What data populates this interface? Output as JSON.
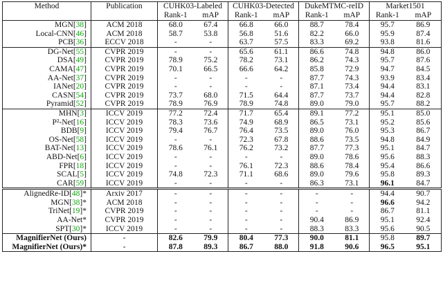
{
  "header": {
    "method": "Method",
    "publication": "Publication",
    "datasets": [
      "CUHK03-Labeled",
      "CUHK03-Detected",
      "DukeMTMC-reID",
      "Market1501"
    ],
    "metric_rank": "Rank-1",
    "metric_map": "mAP"
  },
  "rows": [
    {
      "method": "MGN",
      "cite": "38",
      "suffix": "",
      "pub": "ACM 2018",
      "v": [
        "68.0",
        "67.4",
        "66.8",
        "66.0",
        "88.7",
        "78.4",
        "95.7",
        "86.9"
      ],
      "bold": [],
      "sep": "top"
    },
    {
      "method": "Local-CNN",
      "cite": "46",
      "suffix": "",
      "pub": "ACM 2018",
      "v": [
        "58.7",
        "53.8",
        "56.8",
        "51.6",
        "82.2",
        "66.0",
        "95.9",
        "87.4"
      ],
      "bold": []
    },
    {
      "method": "PCB",
      "cite": "36",
      "suffix": "",
      "pub": "ECCV 2018",
      "v": [
        "-",
        "-",
        "63.7",
        "57.5",
        "83.3",
        "69.2",
        "93.8",
        "81.6"
      ],
      "bold": []
    },
    {
      "method": "DG-Net",
      "cite": "55",
      "suffix": "",
      "pub": "CVPR 2019",
      "v": [
        "-",
        "-",
        "65.6",
        "61.1",
        "86.6",
        "74.8",
        "94.8",
        "86.0"
      ],
      "bold": [],
      "sep": "line"
    },
    {
      "method": "DSA",
      "cite": "49",
      "suffix": "",
      "pub": "CVPR 2019",
      "v": [
        "78.9",
        "75.2",
        "78.2",
        "73.1",
        "86.2",
        "74.3",
        "95.7",
        "87.6"
      ],
      "bold": []
    },
    {
      "method": "CAMA",
      "cite": "47",
      "suffix": "",
      "pub": "CVPR 2019",
      "v": [
        "70.1",
        "66.5",
        "66.6",
        "64.2",
        "85.8",
        "72.9",
        "94.7",
        "84.5"
      ],
      "bold": []
    },
    {
      "method": "AA-Net",
      "cite": "37",
      "suffix": "",
      "pub": "CVPR 2019",
      "v": [
        "-",
        "-",
        "-",
        "-",
        "87.7",
        "74.3",
        "93.9",
        "83.4"
      ],
      "bold": []
    },
    {
      "method": "IANet",
      "cite": "20",
      "suffix": "",
      "pub": "CVPR 2019",
      "v": [
        "-",
        "-",
        "-",
        "-",
        "87.1",
        "73.4",
        "94.4",
        "83.1"
      ],
      "bold": []
    },
    {
      "method": "CASN",
      "cite": "54",
      "suffix": "",
      "pub": "CVPR 2019",
      "v": [
        "73.7",
        "68.0",
        "71.5",
        "64.4",
        "87.7",
        "73.7",
        "94.4",
        "82.8"
      ],
      "bold": []
    },
    {
      "method": "Pyramid",
      "cite": "52",
      "suffix": "",
      "pub": "CVPR 2019",
      "v": [
        "78.9",
        "76.9",
        "78.9",
        "74.8",
        "89.0",
        "79.0",
        "95.7",
        "88.2"
      ],
      "bold": []
    },
    {
      "method": "MHN",
      "cite": "3",
      "suffix": "",
      "pub": "ICCV 2019",
      "v": [
        "77.2",
        "72.4",
        "71.7",
        "65.4",
        "89.1",
        "77.2",
        "95.1",
        "85.0"
      ],
      "bold": [],
      "sep": "line"
    },
    {
      "method": "P²-Net",
      "cite": "16",
      "suffix": "",
      "pub": "ICCV 2019",
      "v": [
        "78.3",
        "73.6",
        "74.9",
        "68.9",
        "86.5",
        "73.1",
        "95.2",
        "85.6"
      ],
      "bold": []
    },
    {
      "method": "BDB",
      "cite": "9",
      "suffix": "",
      "pub": "ICCV 2019",
      "v": [
        "79.4",
        "76.7",
        "76.4",
        "73.5",
        "89.0",
        "76.0",
        "95.3",
        "86.7"
      ],
      "bold": []
    },
    {
      "method": "OS-Net",
      "cite": "58",
      "suffix": "",
      "pub": "ICCV 2019",
      "v": [
        "-",
        "-",
        "72.3",
        "67.8",
        "88.6",
        "73.5",
        "94.8",
        "84.9"
      ],
      "bold": []
    },
    {
      "method": "BAT-Net",
      "cite": "13",
      "suffix": "",
      "pub": "ICCV 2019",
      "v": [
        "78.6",
        "76.1",
        "76.2",
        "73.2",
        "87.7",
        "77.3",
        "95.1",
        "84.7"
      ],
      "bold": []
    },
    {
      "method": "ABD-Net",
      "cite": "6",
      "suffix": "",
      "pub": "ICCV 2019",
      "v": [
        "-",
        "-",
        "-",
        "-",
        "89.0",
        "78.6",
        "95.6",
        "88.3"
      ],
      "bold": []
    },
    {
      "method": "FPR",
      "cite": "18",
      "suffix": "",
      "pub": "ICCV 2019",
      "v": [
        "-",
        "-",
        "76.1",
        "72.3",
        "88.6",
        "78.4",
        "95.4",
        "86.6"
      ],
      "bold": []
    },
    {
      "method": "SCAL",
      "cite": "5",
      "suffix": "",
      "pub": "ICCV 2019",
      "v": [
        "74.8",
        "72.3",
        "71.1",
        "68.6",
        "89.0",
        "79.6",
        "95.8",
        "89.3"
      ],
      "bold": []
    },
    {
      "method": "CAR",
      "cite": "59",
      "suffix": "",
      "pub": "ICCV 2019",
      "v": [
        "-",
        "-",
        "-",
        "-",
        "86.3",
        "73.1",
        "96.1",
        "84.7"
      ],
      "bold": [
        6
      ]
    },
    {
      "method": "AlignedRe-ID",
      "cite": "48",
      "suffix": "*",
      "pub": "Arxiv 2017",
      "v": [
        "-",
        "-",
        "-",
        "-",
        "-",
        "-",
        "94.4",
        "90.7"
      ],
      "bold": [],
      "sep": "double"
    },
    {
      "method": "MGN",
      "cite": "38",
      "suffix": "*",
      "pub": "ACM 2018",
      "v": [
        "-",
        "-",
        "-",
        "-",
        "-",
        "-",
        "96.6",
        "94.2"
      ],
      "bold": [
        6
      ]
    },
    {
      "method": "TriNet",
      "cite": "19",
      "suffix": "*",
      "pub": "CVPR 2019",
      "v": [
        "-",
        "-",
        "-",
        "-",
        "-",
        "-",
        "86.7",
        "81.1"
      ],
      "bold": []
    },
    {
      "method": "AA-Net",
      "cite": "",
      "suffix": "*",
      "pub": "CVPR 2019",
      "v": [
        "-",
        "-",
        "-",
        "-",
        "90.4",
        "86.9",
        "95.1",
        "92.4"
      ],
      "bold": []
    },
    {
      "method": "SPT",
      "cite": "30",
      "suffix": "*",
      "pub": "ICCV 2019",
      "v": [
        "-",
        "-",
        "-",
        "-",
        "88.3",
        "83.3",
        "95.6",
        "90.5"
      ],
      "bold": []
    },
    {
      "method": "MagnifierNet (Ours)",
      "cite": "",
      "suffix": "",
      "pub": "-",
      "v": [
        "82.6",
        "79.9",
        "80.4",
        "77.3",
        "90.0",
        "81.1",
        "95.8",
        "89.7"
      ],
      "bold": [
        0,
        1,
        2,
        3,
        4,
        5,
        7
      ],
      "sep": "line",
      "ours": true
    },
    {
      "method": "MagnifierNet (Ours)",
      "cite": "",
      "suffix": "*",
      "pub": "-",
      "v": [
        "87.8",
        "89.3",
        "86.7",
        "88.0",
        "91.8",
        "90.6",
        "96.5",
        "95.1"
      ],
      "bold": [
        0,
        1,
        2,
        3,
        4,
        5,
        6,
        7
      ],
      "ours": true,
      "last": true
    }
  ]
}
